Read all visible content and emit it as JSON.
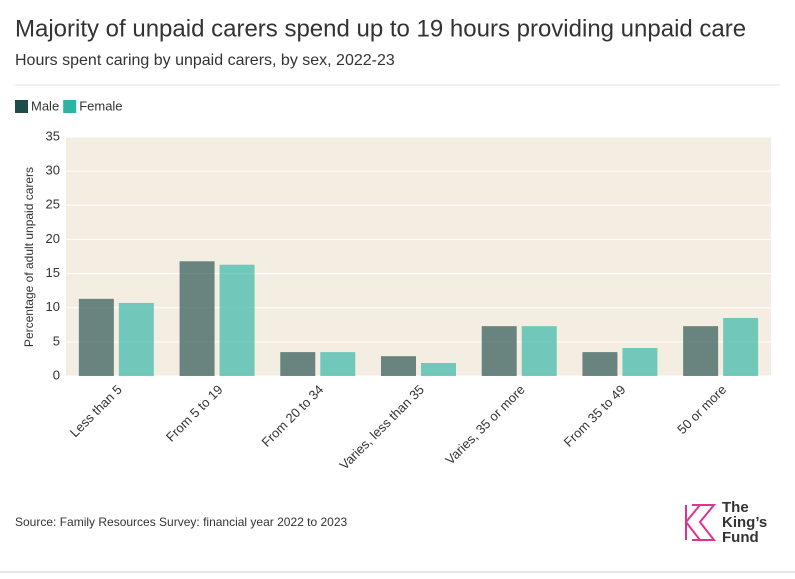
{
  "chart_data": {
    "type": "bar",
    "title": "Majority of unpaid carers spend up to 19 hours providing unpaid care",
    "subtitle": "Hours spent caring by unpaid carers, by sex, 2022-23",
    "y_label": "Percentage of adult unpaid carers",
    "categories": [
      "Less than 5",
      "From 5 to 19",
      "From 20 to 34",
      "Varies, less than 35",
      "Varies, 35 or more",
      "From 35 to 49",
      "50 or more"
    ],
    "series": [
      {
        "name": "Male",
        "color": "#1f4b48",
        "values": [
          11.3,
          16.8,
          3.5,
          2.9,
          7.3,
          3.5,
          7.3
        ]
      },
      {
        "name": "Female",
        "color": "#2bb3a4",
        "values": [
          10.7,
          16.3,
          3.5,
          1.9,
          7.3,
          4.1,
          8.5
        ]
      }
    ],
    "ylim": [
      0,
      35
    ],
    "yticks": [
      0,
      5,
      10,
      15,
      20,
      25,
      30,
      35
    ],
    "grid": true,
    "legend": "top-left",
    "source": "Source: Family Resources Survey: financial year 2022 to 2023"
  },
  "logo": [
    "The",
    "King’s",
    "Fund"
  ]
}
